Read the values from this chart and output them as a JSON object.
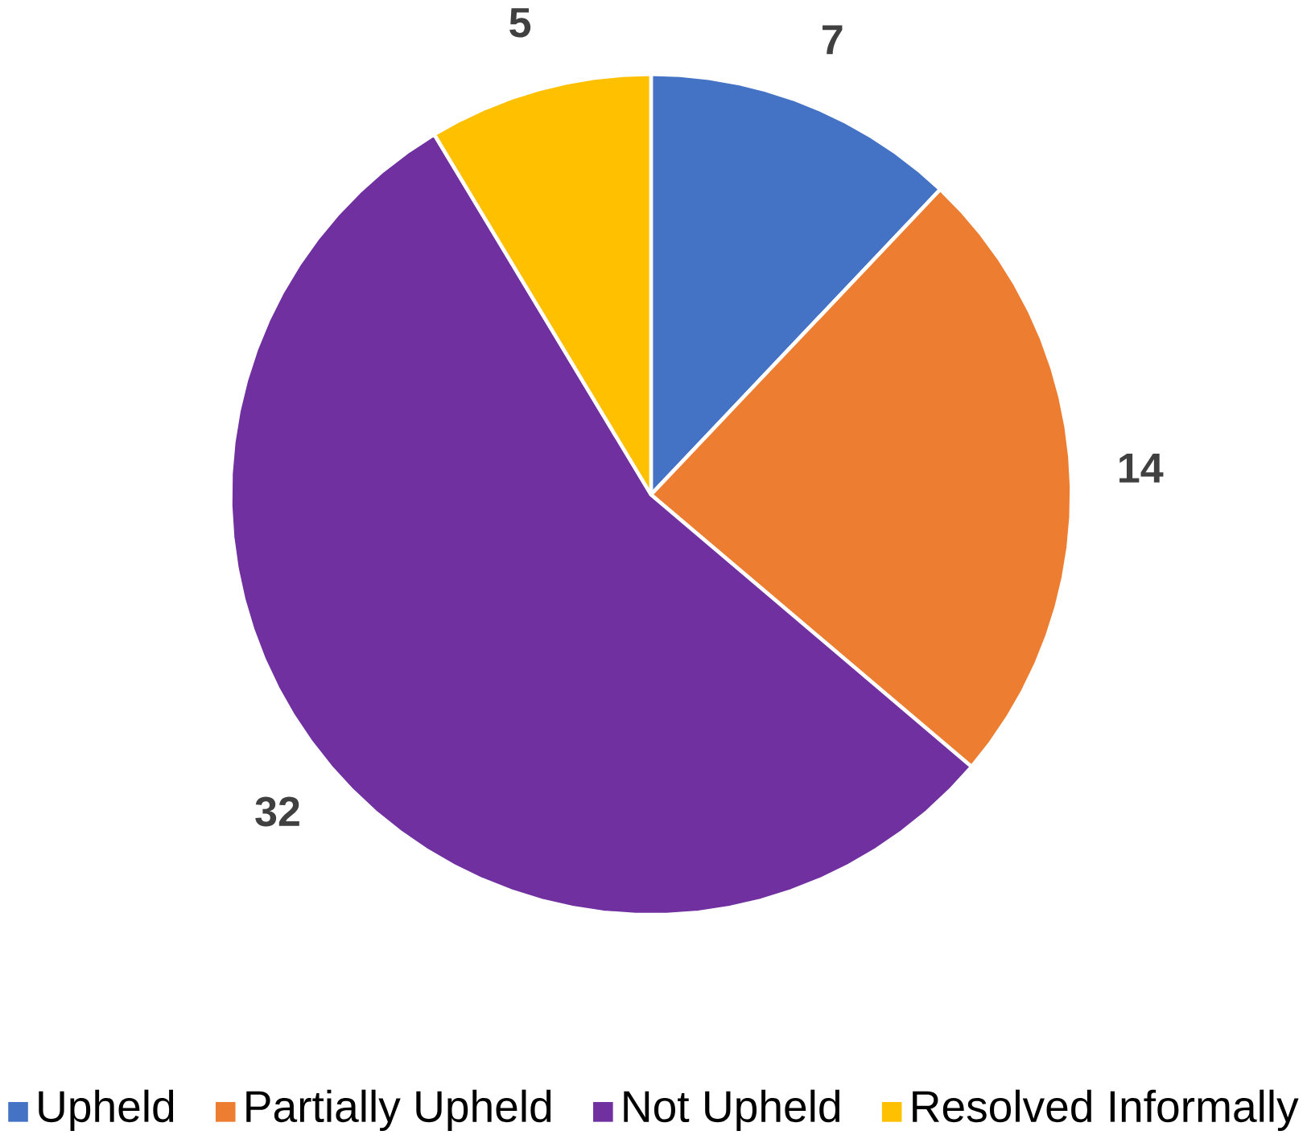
{
  "chart_data": {
    "type": "pie",
    "categories": [
      "Upheld",
      "Partially Upheld",
      "Not Upheld",
      "Resolved Informally"
    ],
    "values": [
      7,
      14,
      32,
      5
    ],
    "colors": [
      "#4472c4",
      "#ed7d31",
      "#7030a0",
      "#ffc000"
    ],
    "data_labels": true,
    "legend": "bottom"
  }
}
